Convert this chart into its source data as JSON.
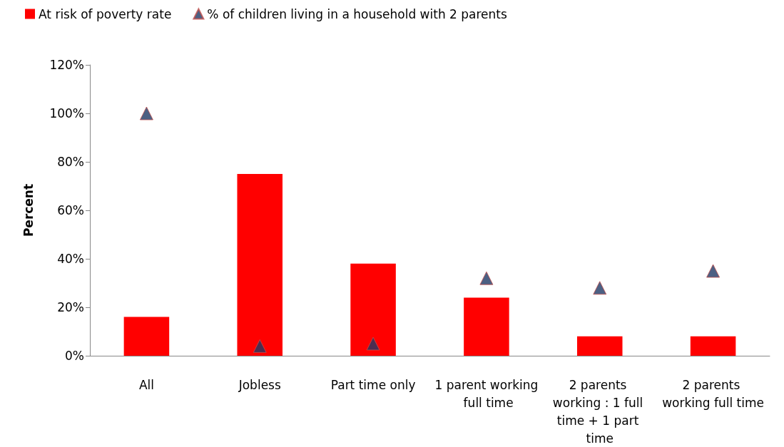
{
  "chart_data": {
    "type": "bar",
    "ylabel": "Percent",
    "categories": [
      "All",
      "Jobless",
      "Part time only",
      "1 parent working full time",
      "2 parents working : 1 full time + 1 part time",
      "2 parents working full time"
    ],
    "series": [
      {
        "name": "At risk of poverty rate",
        "color": "#ff0000",
        "values": [
          16,
          75,
          38,
          24,
          8,
          8
        ]
      },
      {
        "name": "% of children living in a household with 2 parents",
        "type": "scatter",
        "color": "#1f3864",
        "values": [
          100,
          4,
          5,
          32,
          28,
          35
        ]
      }
    ],
    "ylim": [
      0,
      120
    ],
    "yticks": [
      {
        "value": 0,
        "label": "0%"
      },
      {
        "value": 20,
        "label": "20%"
      },
      {
        "value": 40,
        "label": "40%"
      },
      {
        "value": 60,
        "label": "60%"
      },
      {
        "value": 80,
        "label": "80%"
      },
      {
        "value": 100,
        "label": "100%"
      },
      {
        "value": 120,
        "label": "120%"
      }
    ],
    "grid": false,
    "legend": "top left",
    "marker": "triangle"
  }
}
